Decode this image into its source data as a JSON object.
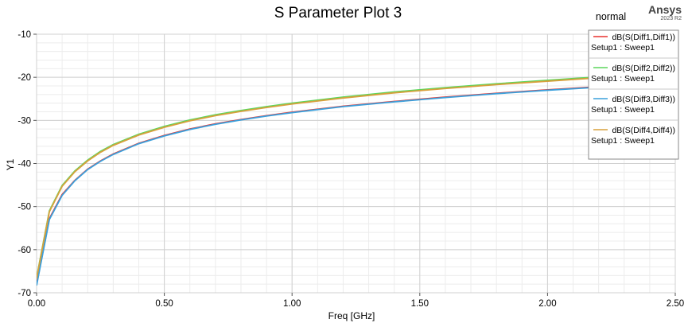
{
  "header": {
    "brand": "Ansys",
    "brand_version": "2023 R2",
    "mode_label": "normal"
  },
  "chart_data": {
    "type": "line",
    "title": "S Parameter Plot 3",
    "xlabel": "Freq [GHz]",
    "ylabel": "Y1",
    "xlim": [
      0,
      2.5
    ],
    "ylim": [
      -70,
      -10
    ],
    "x_ticks": [
      "0.00",
      "0.50",
      "1.00",
      "1.50",
      "2.00",
      "2.50"
    ],
    "y_ticks": [
      "-10",
      "-20",
      "-30",
      "-40",
      "-50",
      "-60",
      "-70"
    ],
    "grid": true,
    "legend_position": "top-right",
    "x": [
      0,
      0.05,
      0.1,
      0.15,
      0.2,
      0.25,
      0.3,
      0.4,
      0.5,
      0.6,
      0.7,
      0.8,
      0.9,
      1.0,
      1.2,
      1.4,
      1.6,
      1.8,
      2.0,
      2.2,
      2.4,
      2.5
    ],
    "series": [
      {
        "name": "dB(S(Diff1,Diff1))",
        "setup": "Setup1 : Sweep1",
        "color": "#e8322e",
        "values": [
          -68.0,
          -52.8,
          -47.2,
          -43.9,
          -41.3,
          -39.4,
          -37.8,
          -35.3,
          -33.5,
          -32.0,
          -30.8,
          -29.8,
          -28.9,
          -28.1,
          -26.7,
          -25.6,
          -24.6,
          -23.7,
          -22.9,
          -22.2,
          -21.6,
          -21.3
        ]
      },
      {
        "name": "dB(S(Diff2,Diff2))",
        "setup": "Setup1 : Sweep1",
        "color": "#5cd65c",
        "values": [
          -66.5,
          -51.0,
          -45.1,
          -41.7,
          -39.2,
          -37.2,
          -35.6,
          -33.2,
          -31.4,
          -29.9,
          -28.7,
          -27.7,
          -26.8,
          -26.0,
          -24.6,
          -23.4,
          -22.4,
          -21.5,
          -20.7,
          -19.9,
          -19.3,
          -19.0
        ]
      },
      {
        "name": "dB(S(Diff3,Diff3))",
        "setup": "Setup1 : Sweep1",
        "color": "#3aa0dc",
        "values": [
          -68.3,
          -53.0,
          -47.4,
          -44.0,
          -41.4,
          -39.5,
          -37.9,
          -35.4,
          -33.6,
          -32.1,
          -30.9,
          -29.9,
          -29.0,
          -28.2,
          -26.8,
          -25.7,
          -24.7,
          -23.8,
          -23.0,
          -22.3,
          -21.7,
          -21.4
        ]
      },
      {
        "name": "dB(S(Diff4,Diff4))",
        "setup": "Setup1 : Sweep1",
        "color": "#d8a03c",
        "values": [
          -66.7,
          -51.2,
          -45.3,
          -41.9,
          -39.4,
          -37.4,
          -35.8,
          -33.4,
          -31.6,
          -30.1,
          -28.9,
          -27.9,
          -27.0,
          -26.2,
          -24.8,
          -23.6,
          -22.6,
          -21.7,
          -20.9,
          -20.1,
          -19.5,
          -19.2
        ]
      }
    ]
  }
}
